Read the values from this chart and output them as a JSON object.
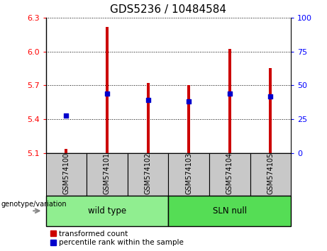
{
  "title": "GDS5236 / 10484584",
  "samples": [
    "GSM574100",
    "GSM574101",
    "GSM574102",
    "GSM574103",
    "GSM574104",
    "GSM574105"
  ],
  "red_values": [
    5.14,
    6.22,
    5.72,
    5.7,
    6.02,
    5.85
  ],
  "blue_values": [
    5.43,
    5.63,
    5.57,
    5.56,
    5.63,
    5.6
  ],
  "ylim_left": [
    5.1,
    6.3
  ],
  "ylim_right": [
    0,
    100
  ],
  "yticks_left": [
    5.1,
    5.4,
    5.7,
    6.0,
    6.3
  ],
  "yticks_right": [
    0,
    25,
    50,
    75,
    100
  ],
  "legend_red": "transformed count",
  "legend_blue": "percentile rank within the sample",
  "bar_color": "#CC0000",
  "dot_color": "#0000CC",
  "background_sample_row": "#C8C8C8",
  "group_wt_color": "#90EE90",
  "group_sln_color": "#55DD55",
  "bar_bottom": 5.1,
  "bar_width": 0.07,
  "title_fontsize": 11,
  "tick_fontsize": 8,
  "dot_size": 18
}
